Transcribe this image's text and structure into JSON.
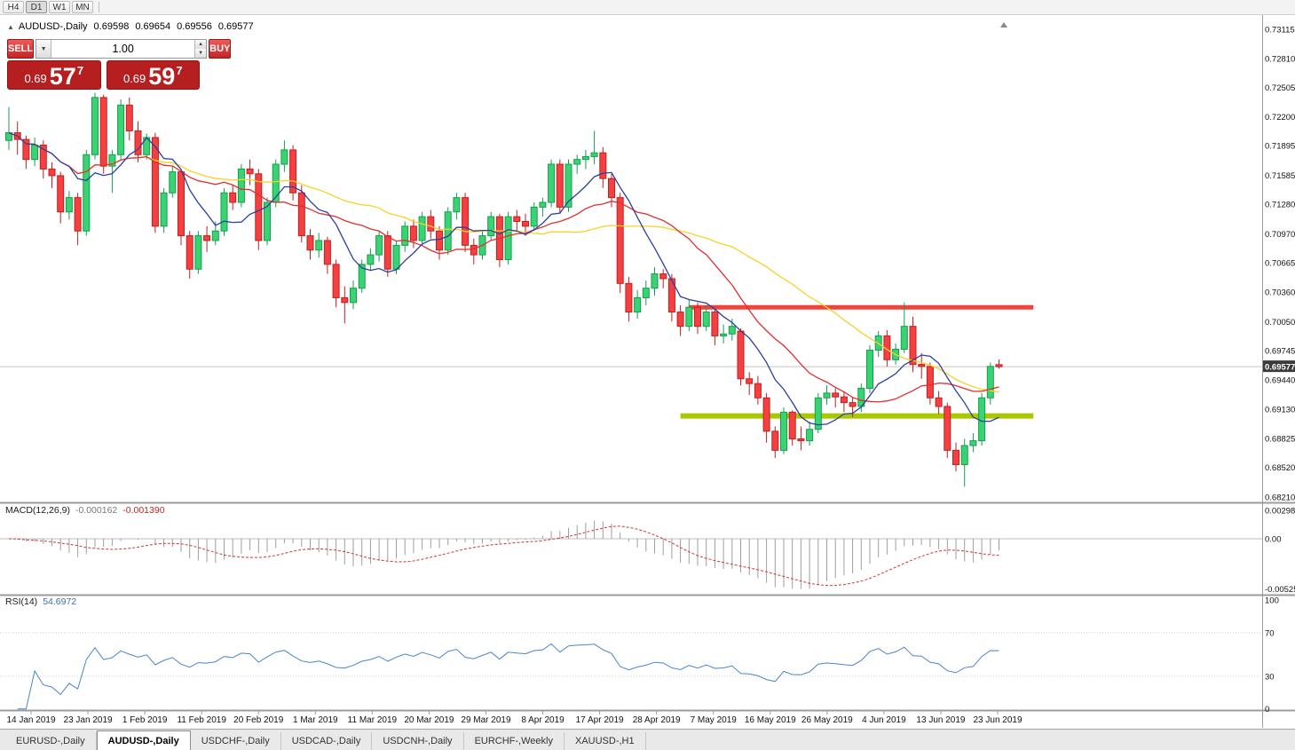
{
  "toolbar": {
    "timeframes": [
      {
        "label": "H4",
        "active": false
      },
      {
        "label": "D1",
        "active": true
      },
      {
        "label": "W1",
        "active": false
      },
      {
        "label": "MN",
        "active": false
      }
    ]
  },
  "chart_header": {
    "symbol": "AUDUSD-,Daily",
    "open": "0.69598",
    "high": "0.69654",
    "low": "0.69556",
    "close": "0.69577"
  },
  "one_click": {
    "sell_label": "SELL",
    "buy_label": "BUY",
    "volume": "1.00",
    "sell_price": {
      "base": "0.69",
      "big": "57",
      "sup": "7"
    },
    "buy_price": {
      "base": "0.69",
      "big": "59",
      "sup": "7"
    }
  },
  "indicators": {
    "macd": {
      "label": "MACD(12,26,9)",
      "value_main": "-0.000162",
      "value_signal": "-0.001390",
      "axis_labels": [
        "0.002984",
        "0.00",
        "-0.005254"
      ]
    },
    "rsi": {
      "label": "RSI(14)",
      "value": "54.6972",
      "axis_labels": [
        "100",
        "70",
        "30",
        "0"
      ]
    }
  },
  "axis": {
    "price_labels": [
      "0.73115",
      "0.72810",
      "0.72505",
      "0.72200",
      "0.71895",
      "0.71585",
      "0.71280",
      "0.70970",
      "0.70665",
      "0.70360",
      "0.70050",
      "0.69745",
      "0.69440",
      "0.69130",
      "0.68825",
      "0.68520",
      "0.68210"
    ],
    "current_price": "0.69577"
  },
  "tabs": [
    {
      "label": "EURUSD-,Daily",
      "active": false
    },
    {
      "label": "AUDUSD-,Daily",
      "active": true
    },
    {
      "label": "USDCHF-,Daily",
      "active": false
    },
    {
      "label": "USDCAD-,Daily",
      "active": false
    },
    {
      "label": "USDCNH-,Daily",
      "active": false
    },
    {
      "label": "EURCHF-,Weekly",
      "active": false
    },
    {
      "label": "XAUUSD-,H1",
      "active": false
    }
  ],
  "chart_data": {
    "type": "candlestick",
    "symbol": "AUDUSD",
    "timeframe": "Daily",
    "price_range": {
      "min": 0.6821,
      "max": 0.73115
    },
    "current_price": 0.69577,
    "x_date_labels": [
      "14 Jan 2019",
      "23 Jan 2019",
      "1 Feb 2019",
      "11 Feb 2019",
      "20 Feb 2019",
      "1 Mar 2019",
      "11 Mar 2019",
      "20 Mar 2019",
      "29 Mar 2019",
      "8 Apr 2019",
      "17 Apr 2019",
      "28 Apr 2019",
      "7 May 2019",
      "16 May 2019",
      "26 May 2019",
      "4 Jun 2019",
      "13 Jun 2019",
      "23 Jun 2019"
    ],
    "colors": {
      "up_fill": "#3ad373",
      "up_border": "#149e4c",
      "down_fill": "#f44040",
      "down_border": "#c31f1f"
    },
    "moving_averages": [
      {
        "period": 34,
        "color": "#f5d327"
      },
      {
        "period": 17,
        "color": "#e12e2e"
      },
      {
        "period": 8,
        "color": "#2b3f9e"
      }
    ],
    "hlines": [
      {
        "name": "resistance-line",
        "price": 0.702,
        "color": "#f0433a",
        "width": 5,
        "from_index": 79,
        "to_index": 119
      },
      {
        "name": "support-line",
        "price": 0.6906,
        "color": "#aac800",
        "width": 6,
        "from_index": 78,
        "to_index": 119
      }
    ],
    "macd": {
      "fast": 12,
      "slow": 26,
      "signal": 9,
      "axis_max": 0.002984,
      "axis_min": -0.005254
    },
    "rsi": {
      "period": 14,
      "levels": [
        70,
        30
      ]
    },
    "candles": [
      [
        0.7195,
        0.723,
        0.7185,
        0.7203
      ],
      [
        0.7203,
        0.7215,
        0.718,
        0.7196
      ],
      [
        0.7196,
        0.72,
        0.7165,
        0.7175
      ],
      [
        0.7175,
        0.7198,
        0.7168,
        0.719
      ],
      [
        0.719,
        0.7195,
        0.7155,
        0.7165
      ],
      [
        0.7165,
        0.7172,
        0.7145,
        0.7158
      ],
      [
        0.7158,
        0.7162,
        0.7108,
        0.712
      ],
      [
        0.712,
        0.7142,
        0.7112,
        0.7135
      ],
      [
        0.7135,
        0.714,
        0.7085,
        0.71
      ],
      [
        0.71,
        0.7185,
        0.7095,
        0.718
      ],
      [
        0.718,
        0.7245,
        0.7175,
        0.724
      ],
      [
        0.724,
        0.7243,
        0.716,
        0.7168
      ],
      [
        0.7168,
        0.7185,
        0.714,
        0.718
      ],
      [
        0.718,
        0.7238,
        0.7175,
        0.7232
      ],
      [
        0.7232,
        0.724,
        0.7195,
        0.7205
      ],
      [
        0.7205,
        0.7215,
        0.7172,
        0.718
      ],
      [
        0.718,
        0.7202,
        0.7175,
        0.7198
      ],
      [
        0.7198,
        0.7203,
        0.7098,
        0.7105
      ],
      [
        0.7105,
        0.7145,
        0.7098,
        0.714
      ],
      [
        0.714,
        0.7168,
        0.7135,
        0.7162
      ],
      [
        0.7162,
        0.7165,
        0.7085,
        0.7095
      ],
      [
        0.7095,
        0.71,
        0.705,
        0.706
      ],
      [
        0.706,
        0.71,
        0.7055,
        0.7095
      ],
      [
        0.7095,
        0.7105,
        0.7078,
        0.709
      ],
      [
        0.709,
        0.711,
        0.7085,
        0.71
      ],
      [
        0.71,
        0.7145,
        0.7095,
        0.714
      ],
      [
        0.714,
        0.7148,
        0.7122,
        0.713
      ],
      [
        0.713,
        0.717,
        0.7125,
        0.7165
      ],
      [
        0.7165,
        0.7175,
        0.7148,
        0.716
      ],
      [
        0.716,
        0.7165,
        0.708,
        0.709
      ],
      [
        0.709,
        0.7135,
        0.7085,
        0.713
      ],
      [
        0.713,
        0.7175,
        0.7125,
        0.717
      ],
      [
        0.717,
        0.7195,
        0.7162,
        0.7185
      ],
      [
        0.7185,
        0.719,
        0.7132,
        0.714
      ],
      [
        0.714,
        0.7148,
        0.7088,
        0.7095
      ],
      [
        0.7095,
        0.7102,
        0.707,
        0.708
      ],
      [
        0.708,
        0.7098,
        0.7072,
        0.709
      ],
      [
        0.709,
        0.7094,
        0.7055,
        0.7065
      ],
      [
        0.7065,
        0.707,
        0.702,
        0.703
      ],
      [
        0.703,
        0.7042,
        0.7003,
        0.7025
      ],
      [
        0.7025,
        0.7048,
        0.7018,
        0.704
      ],
      [
        0.704,
        0.707,
        0.7035,
        0.7065
      ],
      [
        0.7065,
        0.7082,
        0.7058,
        0.7075
      ],
      [
        0.7075,
        0.71,
        0.7068,
        0.7095
      ],
      [
        0.7095,
        0.71,
        0.7052,
        0.706
      ],
      [
        0.706,
        0.709,
        0.7055,
        0.7085
      ],
      [
        0.7085,
        0.711,
        0.7078,
        0.7105
      ],
      [
        0.7105,
        0.7112,
        0.7082,
        0.709
      ],
      [
        0.709,
        0.712,
        0.7085,
        0.7115
      ],
      [
        0.7115,
        0.7122,
        0.7092,
        0.71
      ],
      [
        0.71,
        0.7105,
        0.707,
        0.708
      ],
      [
        0.708,
        0.7125,
        0.7075,
        0.712
      ],
      [
        0.712,
        0.714,
        0.7112,
        0.7135
      ],
      [
        0.7135,
        0.714,
        0.7078,
        0.7085
      ],
      [
        0.7085,
        0.7092,
        0.7065,
        0.7075
      ],
      [
        0.7075,
        0.71,
        0.707,
        0.7095
      ],
      [
        0.7095,
        0.712,
        0.709,
        0.7115
      ],
      [
        0.7115,
        0.7118,
        0.7062,
        0.707
      ],
      [
        0.707,
        0.712,
        0.7065,
        0.7115
      ],
      [
        0.7115,
        0.7122,
        0.71,
        0.711
      ],
      [
        0.711,
        0.7118,
        0.7095,
        0.7105
      ],
      [
        0.7105,
        0.713,
        0.71,
        0.7125
      ],
      [
        0.7125,
        0.7135,
        0.7115,
        0.713
      ],
      [
        0.713,
        0.7175,
        0.7125,
        0.717
      ],
      [
        0.717,
        0.7175,
        0.7118,
        0.7125
      ],
      [
        0.7125,
        0.7175,
        0.712,
        0.717
      ],
      [
        0.717,
        0.718,
        0.716,
        0.7175
      ],
      [
        0.7175,
        0.7185,
        0.7165,
        0.7178
      ],
      [
        0.7178,
        0.7205,
        0.717,
        0.7182
      ],
      [
        0.7182,
        0.7188,
        0.7145,
        0.7155
      ],
      [
        0.7155,
        0.716,
        0.7125,
        0.7135
      ],
      [
        0.7135,
        0.714,
        0.7035,
        0.7045
      ],
      [
        0.7045,
        0.7052,
        0.7005,
        0.7015
      ],
      [
        0.7015,
        0.7038,
        0.7008,
        0.703
      ],
      [
        0.703,
        0.7048,
        0.7022,
        0.704
      ],
      [
        0.704,
        0.7062,
        0.7032,
        0.7055
      ],
      [
        0.7055,
        0.706,
        0.704,
        0.705
      ],
      [
        0.705,
        0.7055,
        0.7005,
        0.7015
      ],
      [
        0.7015,
        0.7022,
        0.699,
        0.7
      ],
      [
        0.7,
        0.7028,
        0.6995,
        0.702
      ],
      [
        0.702,
        0.7025,
        0.6992,
        0.7
      ],
      [
        0.7,
        0.7022,
        0.6995,
        0.7015
      ],
      [
        0.7015,
        0.7018,
        0.698,
        0.699
      ],
      [
        0.699,
        0.7002,
        0.6982,
        0.6992
      ],
      [
        0.6992,
        0.7008,
        0.6985,
        0.7
      ],
      [
        0.6995,
        0.6998,
        0.6938,
        0.6945
      ],
      [
        0.6945,
        0.6952,
        0.6928,
        0.694
      ],
      [
        0.694,
        0.6948,
        0.6918,
        0.6925
      ],
      [
        0.6925,
        0.693,
        0.6878,
        0.689
      ],
      [
        0.689,
        0.6895,
        0.6862,
        0.687
      ],
      [
        0.687,
        0.6915,
        0.6866,
        0.691
      ],
      [
        0.691,
        0.6912,
        0.6875,
        0.6882
      ],
      [
        0.6882,
        0.6895,
        0.687,
        0.688
      ],
      [
        0.688,
        0.69,
        0.6875,
        0.6892
      ],
      [
        0.6892,
        0.693,
        0.6888,
        0.6925
      ],
      [
        0.6925,
        0.6938,
        0.6918,
        0.693
      ],
      [
        0.693,
        0.6935,
        0.6915,
        0.6926
      ],
      [
        0.6926,
        0.6932,
        0.691,
        0.692
      ],
      [
        0.692,
        0.6926,
        0.6905,
        0.6916
      ],
      [
        0.6916,
        0.694,
        0.691,
        0.6935
      ],
      [
        0.6935,
        0.698,
        0.693,
        0.6975
      ],
      [
        0.6975,
        0.6995,
        0.6968,
        0.699
      ],
      [
        0.699,
        0.6996,
        0.6958,
        0.6965
      ],
      [
        0.6965,
        0.6982,
        0.696,
        0.6976
      ],
      [
        0.6976,
        0.7025,
        0.6972,
        0.7
      ],
      [
        0.7,
        0.701,
        0.6952,
        0.696
      ],
      [
        0.696,
        0.6972,
        0.6945,
        0.6958
      ],
      [
        0.6958,
        0.6962,
        0.6918,
        0.6925
      ],
      [
        0.6925,
        0.6932,
        0.6908,
        0.6916
      ],
      [
        0.6916,
        0.692,
        0.6862,
        0.687
      ],
      [
        0.687,
        0.6878,
        0.6848,
        0.6855
      ],
      [
        0.6855,
        0.6882,
        0.6832,
        0.6875
      ],
      [
        0.6875,
        0.6888,
        0.6868,
        0.688
      ],
      [
        0.688,
        0.693,
        0.6875,
        0.6925
      ],
      [
        0.6925,
        0.6962,
        0.6918,
        0.6958
      ],
      [
        0.69598,
        0.69654,
        0.69556,
        0.69577
      ]
    ]
  }
}
